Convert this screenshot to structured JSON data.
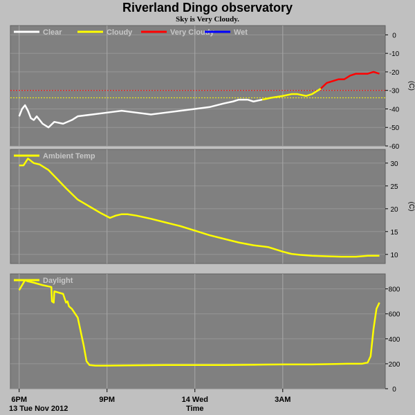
{
  "header": {
    "title": "Riverland Dingo observatory",
    "subtitle": "Sky is Very Cloudy."
  },
  "colors": {
    "panel_bg": "#808080",
    "page_bg": "#c0c0c0",
    "clear": "#ffffff",
    "cloudy": "#ffff00",
    "very_cloudy": "#ff0000",
    "wet": "#0000ff",
    "grid": "#a8a8a8",
    "legend_text": "#c8c8c8"
  },
  "chart_data": [
    {
      "type": "line",
      "panel": "sky",
      "legend": [
        "Clear",
        "Cloudy",
        "Very Cloudy",
        "Wet"
      ],
      "ylabel": "(C)",
      "ylim": [
        -60,
        5
      ],
      "yticks": [
        0,
        -10,
        -20,
        -30,
        -40,
        -50,
        -60
      ],
      "thresholds": [
        {
          "value": -30,
          "color": "#ff0000"
        },
        {
          "value": -34,
          "color": "#ffff00"
        }
      ],
      "x_hours": [
        18.0,
        18.1,
        18.2,
        18.3,
        18.4,
        18.5,
        18.6,
        18.8,
        19.0,
        19.2,
        19.5,
        19.8,
        20.0,
        20.5,
        21.0,
        21.5,
        22.0,
        22.5,
        23.0,
        23.5,
        24.0,
        24.5,
        25.0,
        25.3,
        25.5,
        25.8,
        26.0,
        26.3,
        26.6,
        27.0,
        27.3,
        27.5,
        27.8,
        28.0,
        28.3,
        28.5,
        28.7,
        28.9,
        29.1,
        29.3,
        29.5,
        29.7,
        29.9,
        30.1,
        30.3
      ],
      "y_values": [
        -44,
        -40,
        -38,
        -41,
        -45,
        -46,
        -44,
        -48,
        -50,
        -47,
        -48,
        -46,
        -44,
        -43,
        -42,
        -41,
        -42,
        -43,
        -42,
        -41,
        -40,
        -39,
        -37,
        -36,
        -35,
        -35,
        -36,
        -35,
        -34,
        -33,
        -32,
        -32,
        -33,
        -32,
        -29,
        -26,
        -25,
        -24,
        -24,
        -22,
        -21,
        -21,
        -21,
        -20,
        -21
      ],
      "categories_by_x": [
        {
          "status": "Clear",
          "from": 18.0,
          "to": 26.2
        },
        {
          "status": "Cloudy",
          "from": 26.2,
          "to": 28.1
        },
        {
          "status": "Very Cloudy",
          "from": 28.1,
          "to": 30.3
        }
      ]
    },
    {
      "type": "line",
      "panel": "ambient",
      "legend": [
        "Ambient Temp"
      ],
      "ylabel": "(C)",
      "ylim": [
        8,
        33
      ],
      "yticks": [
        30,
        25,
        20,
        15,
        10
      ],
      "x_hours": [
        18.0,
        18.15,
        18.3,
        18.5,
        18.7,
        19.0,
        19.3,
        19.6,
        20.0,
        20.4,
        20.8,
        21.1,
        21.3,
        21.5,
        21.7,
        22.0,
        22.5,
        23.0,
        23.5,
        24.0,
        24.5,
        25.0,
        25.5,
        26.0,
        26.5,
        27.0,
        27.3,
        27.6,
        28.0,
        28.5,
        29.0,
        29.5,
        29.9,
        30.3
      ],
      "y_values": [
        29.5,
        29.5,
        31.0,
        30.0,
        29.7,
        28.5,
        26.5,
        24.5,
        22.0,
        20.5,
        19.0,
        18.0,
        18.5,
        18.8,
        18.8,
        18.5,
        17.8,
        17.0,
        16.2,
        15.2,
        14.2,
        13.4,
        12.6,
        12.0,
        11.6,
        10.6,
        10.1,
        9.9,
        9.7,
        9.6,
        9.5,
        9.5,
        9.7,
        9.7
      ]
    },
    {
      "type": "line",
      "panel": "daylight",
      "legend": [
        "Daylight"
      ],
      "ylim": [
        0,
        920
      ],
      "yticks": [
        800,
        600,
        400,
        200,
        0
      ],
      "x_hours": [
        18.0,
        18.2,
        18.3,
        18.5,
        18.8,
        19.0,
        19.1,
        19.12,
        19.18,
        19.2,
        19.5,
        19.6,
        19.65,
        19.7,
        19.8,
        20.0,
        20.2,
        20.3,
        20.4,
        20.6,
        21.0,
        22.0,
        23.0,
        24.0,
        25.0,
        26.0,
        27.0,
        28.0,
        28.8,
        29.2,
        29.5,
        29.7,
        29.9,
        30.0,
        30.1,
        30.2,
        30.3
      ],
      "y_values": [
        790,
        870,
        860,
        850,
        830,
        820,
        815,
        700,
        690,
        780,
        760,
        690,
        700,
        660,
        640,
        570,
        350,
        220,
        190,
        185,
        185,
        188,
        190,
        190,
        190,
        192,
        195,
        195,
        198,
        200,
        200,
        200,
        210,
        260,
        480,
        640,
        690
      ]
    }
  ],
  "x_axis": {
    "hour_range": [
      17.7,
      30.5
    ],
    "major_ticks": [
      {
        "hour": 18,
        "label": "6PM",
        "sub": "13 Tue Nov 2012"
      },
      {
        "hour": 21,
        "label": "9PM",
        "sub": ""
      },
      {
        "hour": 24,
        "label": "14 Wed",
        "sub": "Time"
      },
      {
        "hour": 27,
        "label": "3AM",
        "sub": ""
      }
    ],
    "xlabel": "Time"
  }
}
